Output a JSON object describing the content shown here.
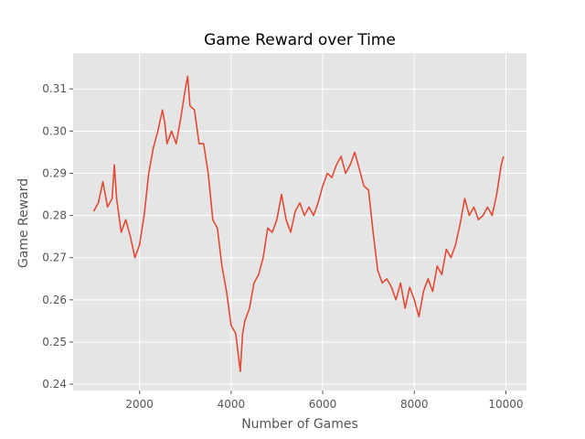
{
  "chart_data": {
    "type": "line",
    "title": "Game Reward over Time",
    "xlabel": "Number of Games",
    "ylabel": "Game Reward",
    "xlim": [
      550,
      10450
    ],
    "ylim": [
      0.2385,
      0.3185
    ],
    "xticks": [
      2000,
      4000,
      6000,
      8000,
      10000
    ],
    "xtick_labels": [
      "2000",
      "4000",
      "6000",
      "8000",
      "10000"
    ],
    "yticks": [
      0.24,
      0.25,
      0.26,
      0.27,
      0.28,
      0.29,
      0.3,
      0.31
    ],
    "ytick_labels": [
      "0.24",
      "0.25",
      "0.26",
      "0.27",
      "0.28",
      "0.29",
      "0.30",
      "0.31"
    ],
    "grid": true,
    "style": "ggplot",
    "colors": {
      "line": "#e24a33",
      "panel": "#e5e5e5",
      "grid": "#ffffff"
    },
    "series": [
      {
        "x": [
          1000,
          1100,
          1200,
          1300,
          1400,
          1450,
          1500,
          1600,
          1700,
          1800,
          1900,
          2000,
          2100,
          2200,
          2300,
          2400,
          2500,
          2550,
          2600,
          2700,
          2800,
          2900,
          3000,
          3050,
          3100,
          3200,
          3300,
          3400,
          3500,
          3600,
          3700,
          3800,
          3900,
          4000,
          4100,
          4200,
          4250,
          4300,
          4400,
          4500,
          4600,
          4700,
          4800,
          4900,
          5000,
          5100,
          5200,
          5300,
          5400,
          5500,
          5600,
          5700,
          5800,
          5900,
          6000,
          6100,
          6200,
          6300,
          6400,
          6500,
          6600,
          6700,
          6800,
          6900,
          7000,
          7100,
          7200,
          7300,
          7400,
          7500,
          7600,
          7700,
          7800,
          7900,
          8000,
          8100,
          8200,
          8300,
          8400,
          8500,
          8600,
          8700,
          8800,
          8900,
          9000,
          9100,
          9200,
          9300,
          9400,
          9500,
          9600,
          9700,
          9800,
          9900,
          9950
        ],
        "y": [
          0.281,
          0.283,
          0.288,
          0.282,
          0.284,
          0.292,
          0.284,
          0.276,
          0.279,
          0.275,
          0.27,
          0.273,
          0.28,
          0.29,
          0.296,
          0.3,
          0.305,
          0.302,
          0.297,
          0.3,
          0.297,
          0.303,
          0.31,
          0.313,
          0.306,
          0.305,
          0.297,
          0.297,
          0.29,
          0.279,
          0.277,
          0.268,
          0.262,
          0.254,
          0.252,
          0.243,
          0.252,
          0.255,
          0.258,
          0.264,
          0.266,
          0.27,
          0.277,
          0.276,
          0.279,
          0.285,
          0.279,
          0.276,
          0.281,
          0.283,
          0.28,
          0.282,
          0.28,
          0.283,
          0.287,
          0.29,
          0.289,
          0.292,
          0.294,
          0.29,
          0.292,
          0.295,
          0.291,
          0.287,
          0.286,
          0.276,
          0.267,
          0.264,
          0.265,
          0.263,
          0.26,
          0.264,
          0.258,
          0.263,
          0.26,
          0.256,
          0.262,
          0.265,
          0.262,
          0.268,
          0.266,
          0.272,
          0.27,
          0.273,
          0.278,
          0.284,
          0.28,
          0.282,
          0.279,
          0.28,
          0.282,
          0.28,
          0.285,
          0.292,
          0.294
        ]
      }
    ]
  }
}
